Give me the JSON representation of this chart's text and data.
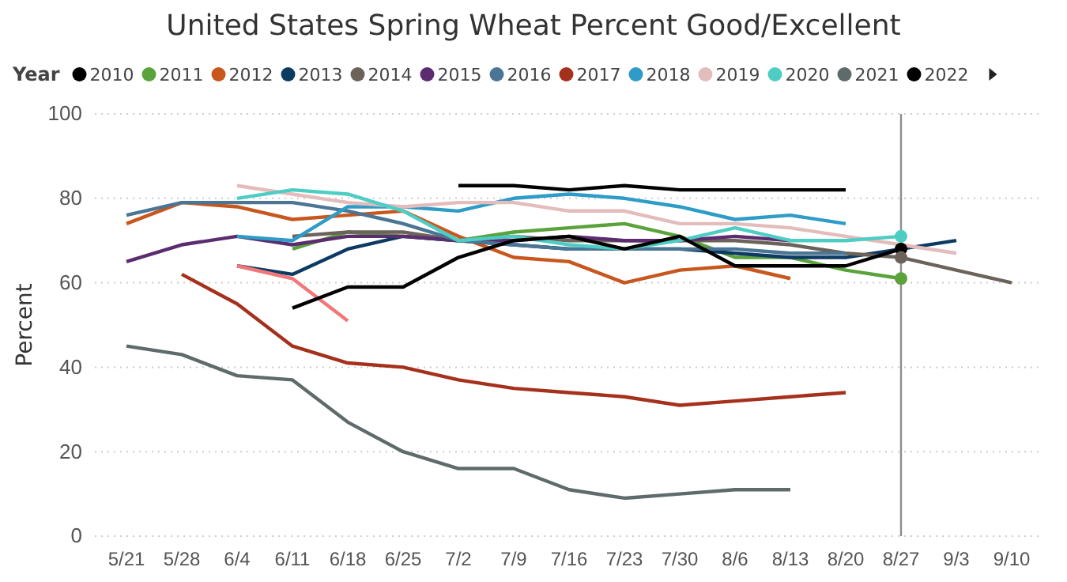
{
  "chart_data": {
    "type": "line",
    "title": "United States Spring Wheat Percent Good/Excellent",
    "ylabel": "Percent",
    "legend_title": "Year",
    "legend": "top",
    "grid": "y",
    "line_style": "solid",
    "categories": [
      "5/21",
      "5/28",
      "6/4",
      "6/11",
      "6/18",
      "6/25",
      "7/2",
      "7/9",
      "7/16",
      "7/23",
      "7/30",
      "8/6",
      "8/13",
      "8/20",
      "8/27",
      "9/3",
      "9/10"
    ],
    "ylim": [
      0,
      100
    ],
    "yticks": [
      0,
      20,
      40,
      60,
      80,
      100
    ],
    "ref_lines": [
      {
        "axis": "x",
        "value": "8/27",
        "color": "#8c8c8c"
      }
    ],
    "series": [
      {
        "name": "2010",
        "color": "#000000",
        "values": [
          null,
          null,
          null,
          null,
          null,
          null,
          83,
          83,
          82,
          83,
          82,
          82,
          82,
          82,
          null,
          null,
          null
        ]
      },
      {
        "name": "2011",
        "color": "#5aa33c",
        "values": [
          null,
          null,
          null,
          68,
          72,
          71,
          70,
          72,
          73,
          74,
          71,
          66,
          66,
          63,
          61,
          null,
          null
        ]
      },
      {
        "name": "2012",
        "color": "#c8571e",
        "values": [
          74,
          79,
          78,
          75,
          76,
          77,
          71,
          66,
          65,
          60,
          63,
          64,
          61,
          null,
          null,
          null,
          null
        ]
      },
      {
        "name": "2013",
        "color": "#0d3a63",
        "values": [
          null,
          null,
          64,
          62,
          68,
          71,
          70,
          69,
          68,
          68,
          68,
          67,
          66,
          66,
          68,
          70,
          null
        ]
      },
      {
        "name": "2014",
        "color": "#6b625a",
        "values": [
          null,
          null,
          null,
          71,
          72,
          72,
          70,
          71,
          70,
          70,
          70,
          70,
          69,
          67,
          66,
          63,
          60
        ]
      },
      {
        "name": "2015",
        "color": "#5b2c6f",
        "values": [
          65,
          69,
          71,
          69,
          71,
          71,
          70,
          70,
          71,
          70,
          70,
          71,
          70,
          null,
          null,
          null,
          null
        ]
      },
      {
        "name": "2016",
        "color": "#4a7594",
        "values": [
          76,
          79,
          79,
          79,
          77,
          74,
          70,
          69,
          68,
          68,
          68,
          68,
          67,
          67,
          null,
          null,
          null
        ]
      },
      {
        "name": "2017",
        "color": "#a5301c",
        "values": [
          null,
          62,
          55,
          45,
          41,
          40,
          37,
          35,
          34,
          33,
          31,
          32,
          33,
          34,
          null,
          null,
          null
        ]
      },
      {
        "name": "2018",
        "color": "#2e9cc7",
        "values": [
          null,
          null,
          71,
          70,
          78,
          78,
          77,
          80,
          81,
          80,
          78,
          75,
          76,
          74,
          null,
          null,
          null
        ]
      },
      {
        "name": "2019",
        "color": "#e3bcbc",
        "values": [
          null,
          null,
          83,
          81,
          79,
          78,
          79,
          79,
          77,
          77,
          74,
          74,
          73,
          71,
          69,
          67,
          null
        ]
      },
      {
        "name": "2020",
        "color": "#4ecdc4",
        "values": [
          null,
          null,
          80,
          82,
          81,
          77,
          70,
          71,
          69,
          68,
          70,
          73,
          70,
          70,
          71,
          null,
          null
        ]
      },
      {
        "name": "2021",
        "color": "#5f6b6b",
        "values": [
          45,
          43,
          38,
          37,
          27,
          20,
          16,
          16,
          11,
          9,
          10,
          11,
          11,
          null,
          null,
          null,
          null
        ]
      },
      {
        "color": "#f07878",
        "values": [
          null,
          null,
          64,
          61,
          51,
          null,
          null,
          null,
          null,
          null,
          null,
          null,
          null,
          null,
          null,
          null,
          null
        ]
      },
      {
        "name": "2022",
        "color": "#000000",
        "values": [
          null,
          null,
          null,
          54,
          59,
          59,
          66,
          70,
          71,
          68,
          71,
          64,
          64,
          64,
          68,
          null,
          null
        ]
      },
      {
        "type": "scatter",
        "x": [
          "8/27",
          "8/27",
          "8/27",
          "8/27"
        ],
        "values": [
          68,
          71,
          61,
          66
        ],
        "colors": [
          "#000000",
          "#4ecdc4",
          "#5aa33c",
          "#6b625a"
        ]
      }
    ]
  }
}
